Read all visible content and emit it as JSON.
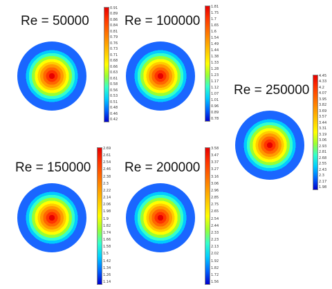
{
  "panels": [
    {
      "label": "Re = 50000",
      "ticks": [
        "0.91",
        "0.89",
        "0.86",
        "0.84",
        "0.81",
        "0.79",
        "0.76",
        "0.73",
        "0.71",
        "0.68",
        "0.66",
        "0.63",
        "0.61",
        "0.58",
        "0.56",
        "0.53",
        "0.51",
        "0.48",
        "0.46",
        "0.42"
      ]
    },
    {
      "label": "Re = 100000",
      "ticks": [
        "1.81",
        "1.75",
        "1.7",
        "1.65",
        "1.6",
        "1.54",
        "1.49",
        "1.44",
        "1.38",
        "1.33",
        "1.28",
        "1.23",
        "1.17",
        "1.12",
        "1.07",
        "1.01",
        "0.96",
        "0.89",
        "0.78"
      ]
    },
    {
      "label": "Re = 250000",
      "ticks": [
        "4.45",
        "4.33",
        "4.2",
        "4.07",
        "3.95",
        "3.82",
        "3.69",
        "3.57",
        "3.44",
        "3.31",
        "3.19",
        "3.06",
        "2.93",
        "2.81",
        "2.68",
        "2.55",
        "2.43",
        "2.3",
        "2.17",
        "1.98"
      ]
    },
    {
      "label": "Re = 150000",
      "ticks": [
        "2.69",
        "2.61",
        "2.54",
        "2.46",
        "2.38",
        "2.3",
        "2.22",
        "2.14",
        "2.06",
        "1.98",
        "1.9",
        "1.82",
        "1.74",
        "1.66",
        "1.58",
        "1.5",
        "1.42",
        "1.34",
        "1.26",
        "1.14"
      ]
    },
    {
      "label": "Re = 200000",
      "ticks": [
        "3.58",
        "3.47",
        "3.37",
        "3.27",
        "3.16",
        "3.06",
        "2.96",
        "2.85",
        "2.75",
        "2.65",
        "2.54",
        "2.44",
        "2.33",
        "2.23",
        "2.13",
        "2.02",
        "1.92",
        "1.82",
        "1.72",
        "1.56"
      ]
    }
  ],
  "colors": {
    "colormap": [
      "#e60000",
      "#ff3300",
      "#ff6600",
      "#ff9900",
      "#ffcc00",
      "#ffff00",
      "#99ff33",
      "#33ffcc",
      "#00ccff",
      "#0066ff",
      "#0000cc"
    ]
  }
}
